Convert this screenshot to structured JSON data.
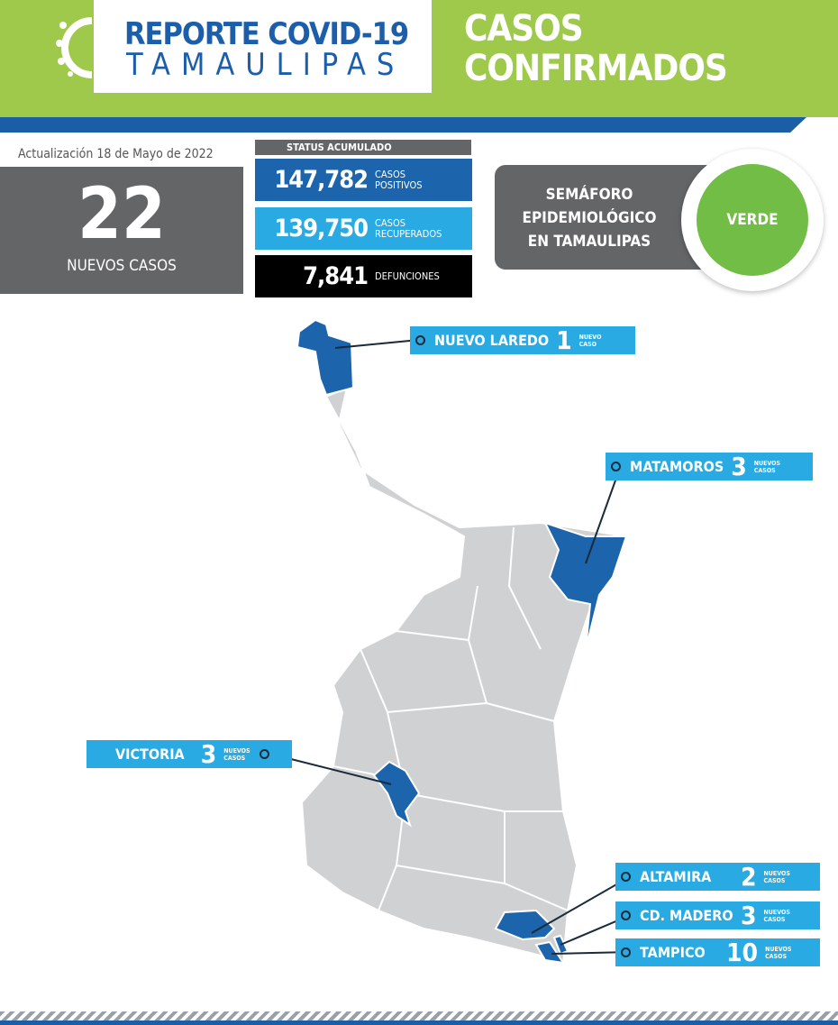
{
  "header": {
    "logo_title": "REPORTE COVID-19",
    "logo_subtitle": "TAMAULIPAS",
    "title_line1": "CASOS",
    "title_line2": "CONFIRMADOS"
  },
  "update": {
    "label": "Actualización  18  de Mayo de 2022"
  },
  "new_cases": {
    "value": "22",
    "label": "NUEVOS CASOS"
  },
  "status": {
    "header": "STATUS ACUMULADO",
    "items": [
      {
        "value": "147,782",
        "label1": "CASOS",
        "label2": "POSITIVOS",
        "color": "#1c64ab"
      },
      {
        "value": "139,750",
        "label1": "CASOS",
        "label2": "RECUPERADOS",
        "color": "#29aae2"
      },
      {
        "value": "7,841",
        "label1": "DEFUNCIONES",
        "label2": "",
        "color": "#000000"
      }
    ]
  },
  "semaforo": {
    "line1": "SEMÁFORO",
    "line2": "EPIDEMIOLÓGICO",
    "line3": "EN TAMAULIPAS",
    "level": "VERDE",
    "level_color": "#72bd46"
  },
  "map": {
    "highlight_color": "#1c64ab",
    "base_color": "#d0d1d3",
    "municipalities": [
      {
        "name": "NUEVO LAREDO",
        "count": "1",
        "unit1": "NUEVO",
        "unit2": "CASO"
      },
      {
        "name": "MATAMOROS",
        "count": "3",
        "unit1": "NUEVOS",
        "unit2": "CASOS"
      },
      {
        "name": "VICTORIA",
        "count": "3",
        "unit1": "NUEVOS",
        "unit2": "CASOS"
      },
      {
        "name": "ALTAMIRA",
        "count": "2",
        "unit1": "NUEVOS",
        "unit2": "CASOS"
      },
      {
        "name": "CD. MADERO",
        "count": "3",
        "unit1": "NUEVOS",
        "unit2": "CASOS"
      },
      {
        "name": "TAMPICO",
        "count": "10",
        "unit1": "NUEVOS",
        "unit2": "CASOS"
      }
    ]
  }
}
